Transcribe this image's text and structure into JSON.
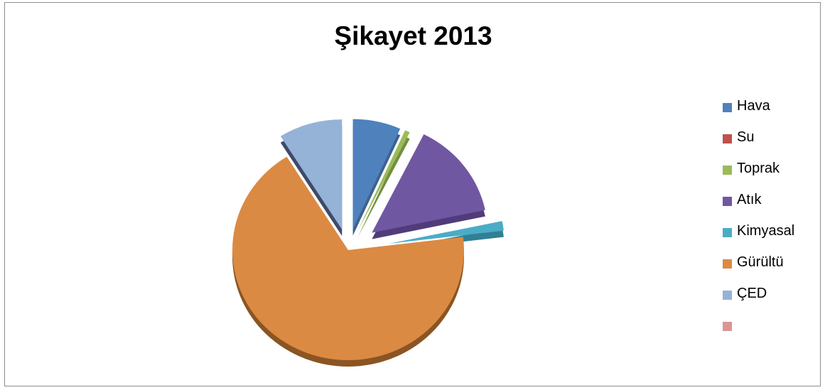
{
  "chart_data": {
    "type": "pie",
    "title": "Şikayet 2013",
    "exploded": true,
    "style": "3d",
    "legend_position": "right",
    "slices": [
      {
        "label": "Hava",
        "value": 6.7,
        "color": "#4f81bd",
        "side": "#3b6291"
      },
      {
        "label": "Su",
        "value": 0,
        "color": "#c0504d",
        "side": "#93393a"
      },
      {
        "label": "Toprak",
        "value": 0.7,
        "color": "#9bbb59",
        "side": "#728f3f"
      },
      {
        "label": "Atık",
        "value": 14.3,
        "color": "#7057a2",
        "side": "#503c7a"
      },
      {
        "label": "Kimyasal",
        "value": 1.4,
        "color": "#4bacc6",
        "side": "#317f95"
      },
      {
        "label": "Gürültü",
        "value": 68.0,
        "color": "#db8a43",
        "side": "#8b5523"
      },
      {
        "label": "ÇED",
        "value": 8.9,
        "color": "#95b3d7",
        "side": "#3f4a6a"
      },
      {
        "label": "",
        "value": 0,
        "color": "#d99694",
        "side": "#b06f6d"
      }
    ]
  }
}
